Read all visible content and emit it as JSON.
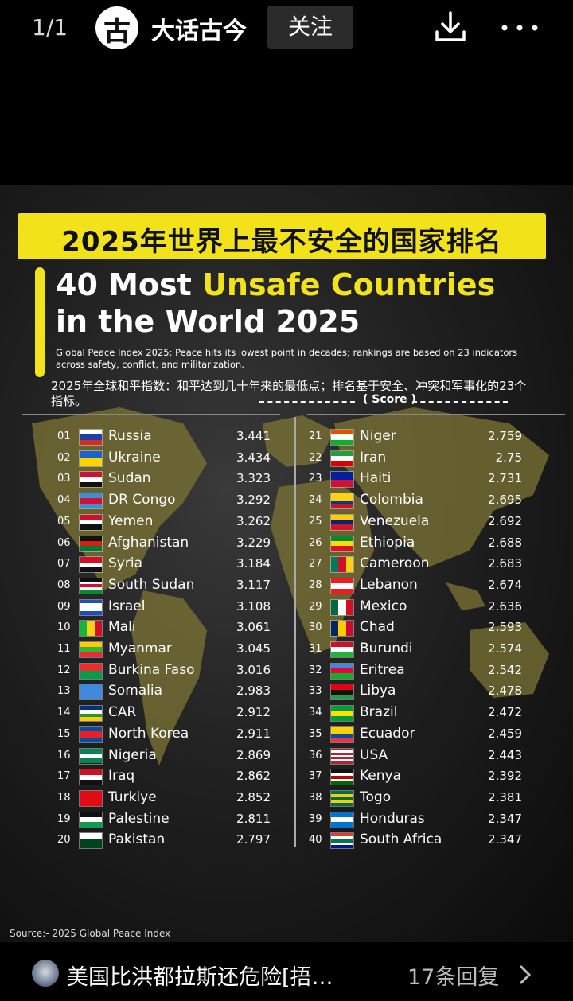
{
  "header": {
    "page_counter": "1/1",
    "avatar_glyph": "古",
    "account_name": "大话古今",
    "follow_label": "关注",
    "icons": [
      "download-icon",
      "more-icon"
    ]
  },
  "poster": {
    "banner": "2025年世界上最不安全的国家排名",
    "title_prefix": "40 Most",
    "title_highlight": "Unsafe Countries",
    "title_line2": "in the World 2025",
    "subtitle": "Global Peace Index 2025: Peace hits its lowest point in decades; rankings are based on 23 indicators across safety, conflict, and militarization.",
    "cn_subtitle": "2025年全球和平指数：和平达到几十年来的最低点；排名基于安全、冲突和军事化的23个指标。",
    "score_label": "( Score )",
    "source": "Source:- 2025 Global Peace Index",
    "accent_color": "#f2e21a",
    "left_column": [
      {
        "rank": "01",
        "country": "Russia",
        "score": "3.441",
        "flag": "russia"
      },
      {
        "rank": "02",
        "country": "Ukraine",
        "score": "3.434",
        "flag": "ukraine"
      },
      {
        "rank": "03",
        "country": "Sudan",
        "score": "3.323",
        "flag": "sudan"
      },
      {
        "rank": "04",
        "country": "DR Congo",
        "score": "3.292",
        "flag": "dr-congo"
      },
      {
        "rank": "05",
        "country": "Yemen",
        "score": "3.262",
        "flag": "yemen"
      },
      {
        "rank": "06",
        "country": "Afghanistan",
        "score": "3.229",
        "flag": "afghanistan"
      },
      {
        "rank": "07",
        "country": "Syria",
        "score": "3.184",
        "flag": "syria"
      },
      {
        "rank": "08",
        "country": "South Sudan",
        "score": "3.117",
        "flag": "south-sudan"
      },
      {
        "rank": "09",
        "country": "Israel",
        "score": "3.108",
        "flag": "israel"
      },
      {
        "rank": "10",
        "country": "Mali",
        "score": "3.061",
        "flag": "mali"
      },
      {
        "rank": "11",
        "country": "Myanmar",
        "score": "3.045",
        "flag": "myanmar"
      },
      {
        "rank": "12",
        "country": "Burkina Faso",
        "score": "3.016",
        "flag": "burkina-faso"
      },
      {
        "rank": "13",
        "country": "Somalia",
        "score": "2.983",
        "flag": "somalia"
      },
      {
        "rank": "14",
        "country": "CAR",
        "score": "2.912",
        "flag": "car"
      },
      {
        "rank": "15",
        "country": "North Korea",
        "score": "2.911",
        "flag": "north-korea"
      },
      {
        "rank": "16",
        "country": "Nigeria",
        "score": "2.869",
        "flag": "nigeria"
      },
      {
        "rank": "17",
        "country": "Iraq",
        "score": "2.862",
        "flag": "iraq"
      },
      {
        "rank": "18",
        "country": "Turkiye",
        "score": "2.852",
        "flag": "turkiye"
      },
      {
        "rank": "19",
        "country": "Palestine",
        "score": "2.811",
        "flag": "palestine"
      },
      {
        "rank": "20",
        "country": "Pakistan",
        "score": "2.797",
        "flag": "pakistan"
      }
    ],
    "right_column": [
      {
        "rank": "21",
        "country": "Niger",
        "score": "2.759",
        "flag": "niger"
      },
      {
        "rank": "22",
        "country": "Iran",
        "score": "2.75",
        "flag": "iran"
      },
      {
        "rank": "23",
        "country": "Haiti",
        "score": "2.731",
        "flag": "haiti"
      },
      {
        "rank": "24",
        "country": "Colombia",
        "score": "2.695",
        "flag": "colombia"
      },
      {
        "rank": "25",
        "country": "Venezuela",
        "score": "2.692",
        "flag": "venezuela"
      },
      {
        "rank": "26",
        "country": "Ethiopia",
        "score": "2.688",
        "flag": "ethiopia"
      },
      {
        "rank": "27",
        "country": "Cameroon",
        "score": "2.683",
        "flag": "cameroon"
      },
      {
        "rank": "28",
        "country": "Lebanon",
        "score": "2.674",
        "flag": "lebanon"
      },
      {
        "rank": "29",
        "country": "Mexico",
        "score": "2.636",
        "flag": "mexico"
      },
      {
        "rank": "30",
        "country": "Chad",
        "score": "2.593",
        "flag": "chad"
      },
      {
        "rank": "31",
        "country": "Burundi",
        "score": "2.574",
        "flag": "burundi"
      },
      {
        "rank": "32",
        "country": "Eritrea",
        "score": "2.542",
        "flag": "eritrea"
      },
      {
        "rank": "33",
        "country": "Libya",
        "score": "2.478",
        "flag": "libya"
      },
      {
        "rank": "34",
        "country": "Brazil",
        "score": "2.472",
        "flag": "brazil"
      },
      {
        "rank": "35",
        "country": "Ecuador",
        "score": "2.459",
        "flag": "ecuador"
      },
      {
        "rank": "36",
        "country": "USA",
        "score": "2.443",
        "flag": "usa"
      },
      {
        "rank": "37",
        "country": "Kenya",
        "score": "2.392",
        "flag": "kenya"
      },
      {
        "rank": "38",
        "country": "Togo",
        "score": "2.381",
        "flag": "togo"
      },
      {
        "rank": "39",
        "country": "Honduras",
        "score": "2.347",
        "flag": "honduras"
      },
      {
        "rank": "40",
        "country": "South Africa",
        "score": "2.347",
        "flag": "south-africa"
      }
    ]
  },
  "footer": {
    "title": "美国比洪都拉斯还危险[捂…",
    "reply_count": "17条回复",
    "icons": [
      "chevron-right-icon"
    ]
  }
}
